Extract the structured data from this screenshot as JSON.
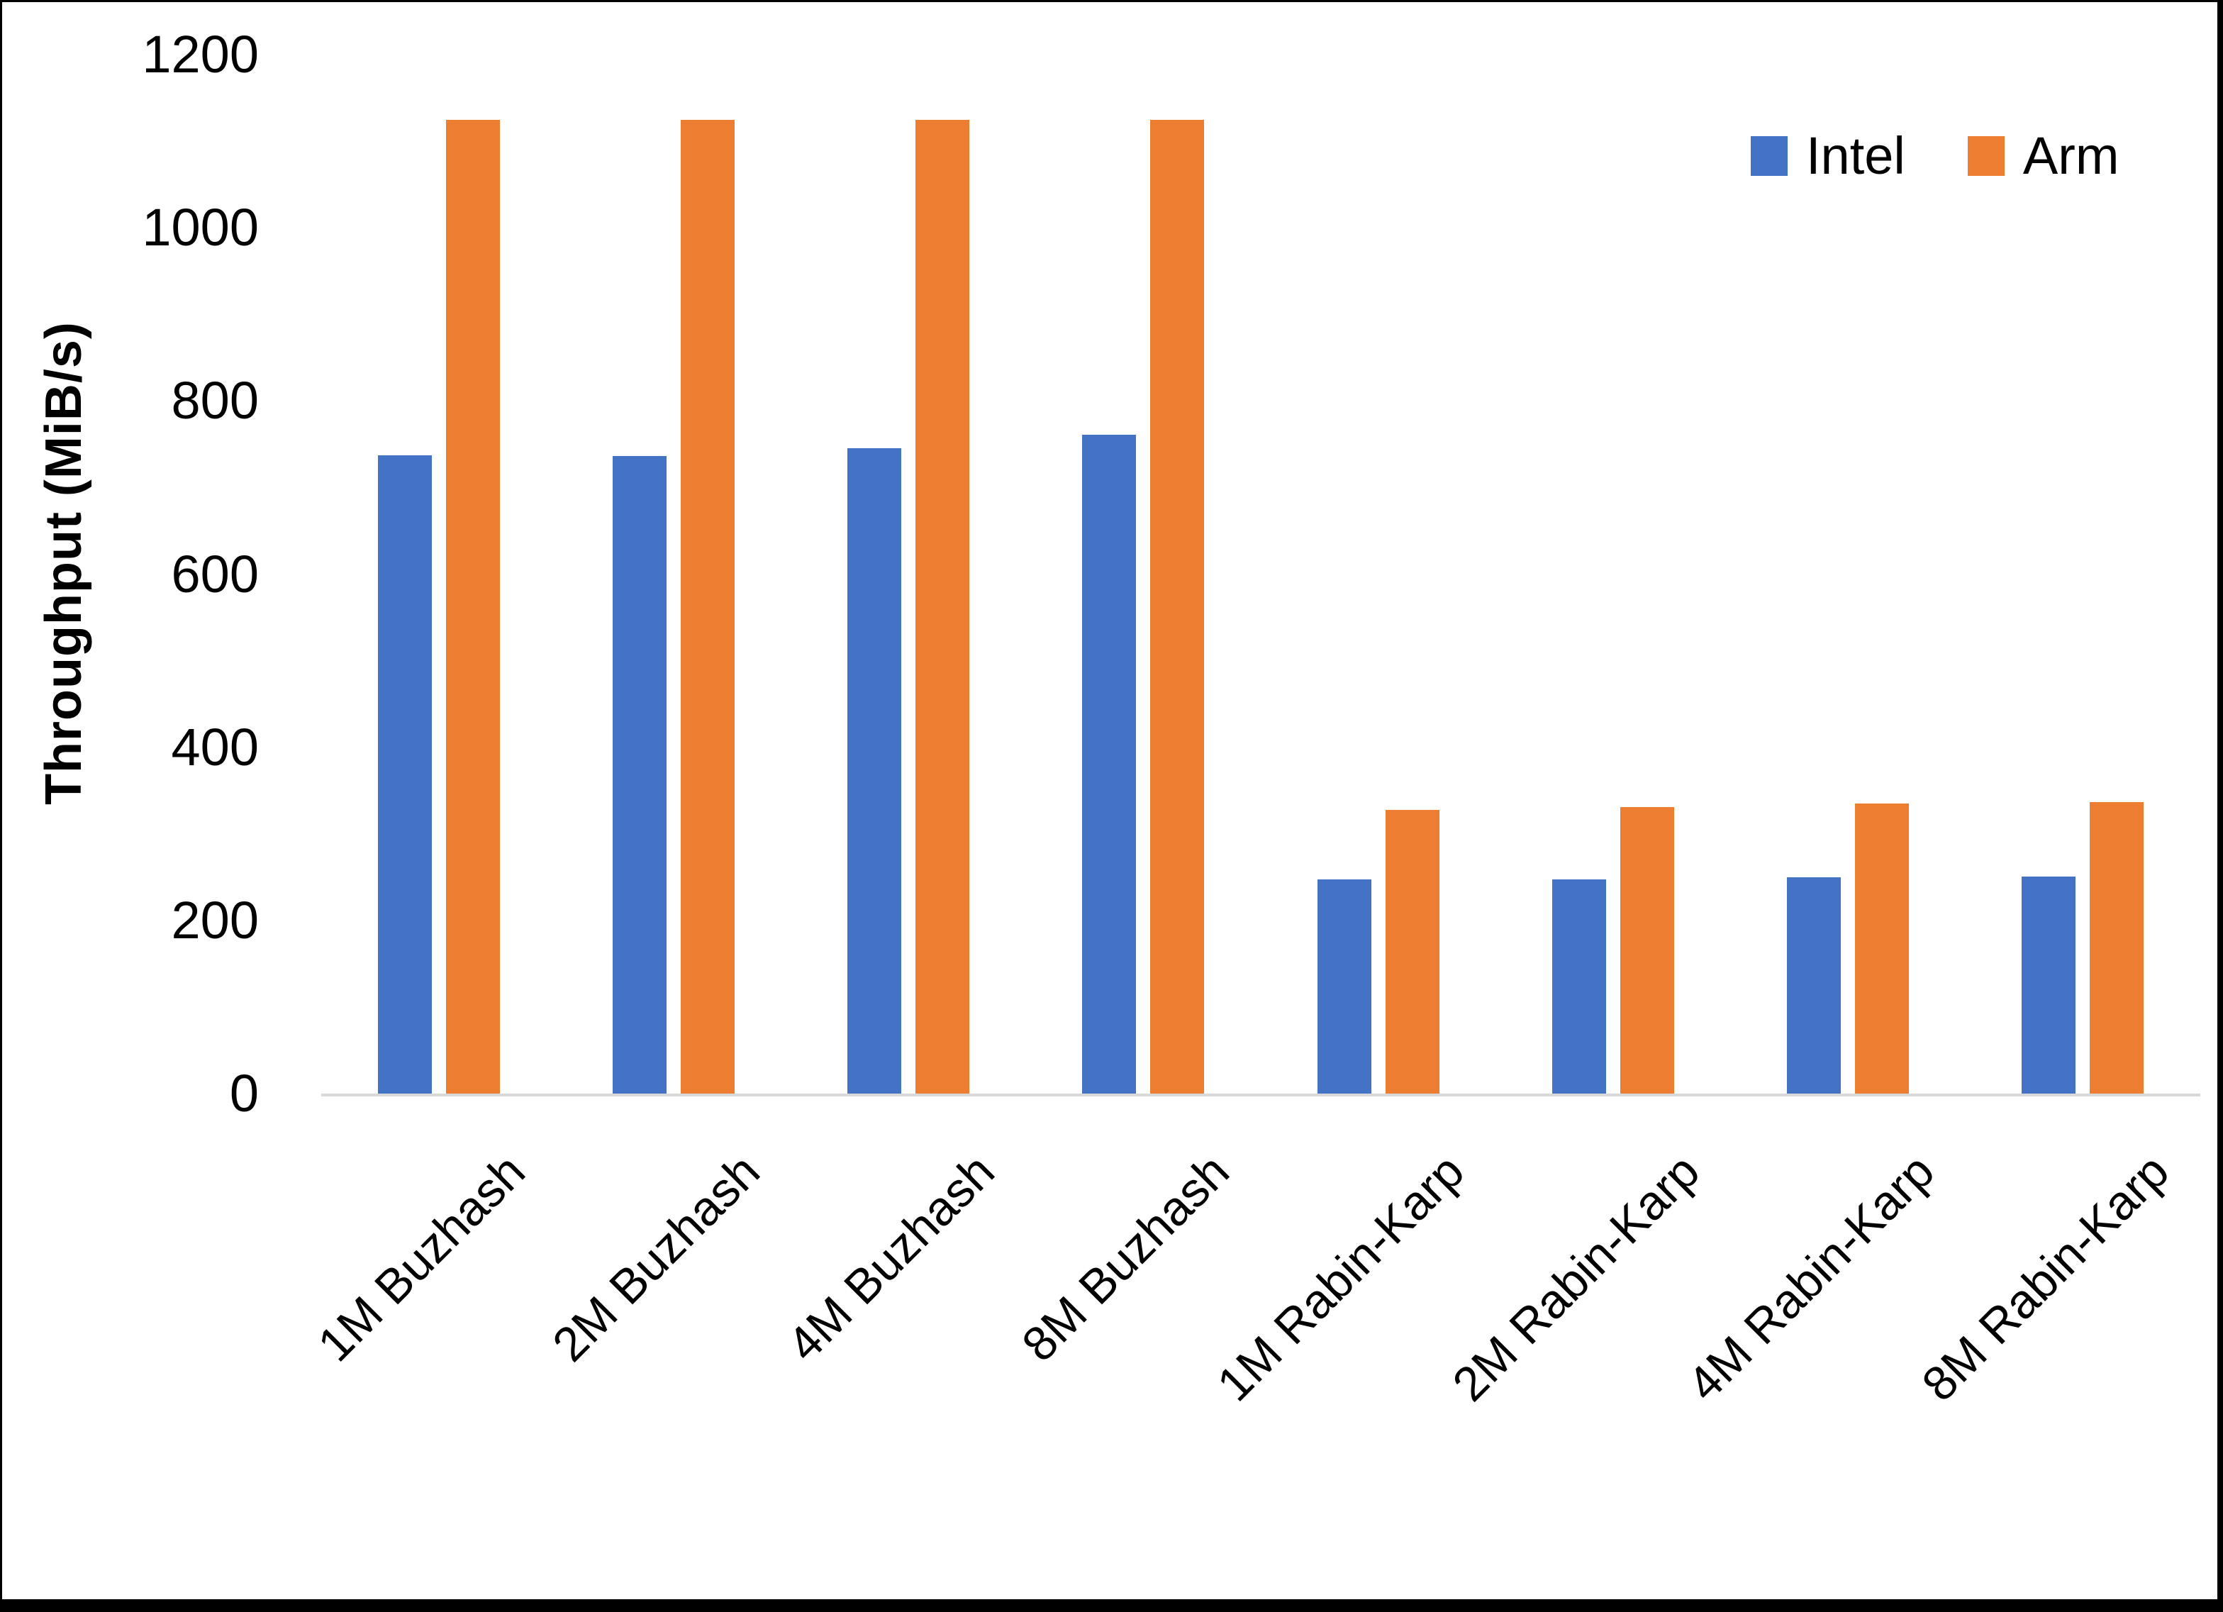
{
  "chart_data": {
    "type": "bar",
    "title": "",
    "xlabel": "",
    "ylabel": "Throughput (MiB/s)",
    "ylim": [
      0,
      1200
    ],
    "yticks": [
      0,
      200,
      400,
      600,
      800,
      1000,
      1200
    ],
    "grid": false,
    "legend_position": "top-right",
    "categories": [
      "1M Buzhash",
      "2M Buzhash",
      "4M Buzhash",
      "8M Buzhash",
      "1M Rabin-Karp",
      "2M Rabin-Karp",
      "4M Rabin-Karp",
      "8M Rabin-Karp"
    ],
    "series": [
      {
        "name": "Intel",
        "color": "#4472C4",
        "values": [
          737,
          736,
          745,
          761,
          247,
          247,
          250,
          251
        ]
      },
      {
        "name": "Arm",
        "color": "#ED7D31",
        "values": [
          1125,
          1125,
          1125,
          1125,
          328,
          331,
          335,
          337
        ]
      }
    ],
    "colors": {
      "axis_line": "#D9D9D9",
      "text": "#000000",
      "background": "#FFFFFF",
      "frame_border": "#000000"
    }
  }
}
